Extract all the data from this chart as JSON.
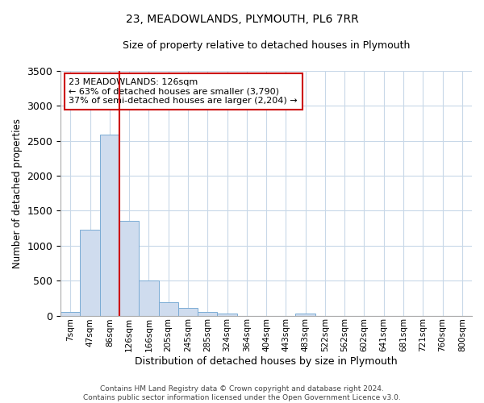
{
  "title": "23, MEADOWLANDS, PLYMOUTH, PL6 7RR",
  "subtitle": "Size of property relative to detached houses in Plymouth",
  "xlabel": "Distribution of detached houses by size in Plymouth",
  "ylabel": "Number of detached properties",
  "bar_labels": [
    "7sqm",
    "47sqm",
    "86sqm",
    "126sqm",
    "166sqm",
    "205sqm",
    "245sqm",
    "285sqm",
    "324sqm",
    "364sqm",
    "404sqm",
    "443sqm",
    "483sqm",
    "522sqm",
    "562sqm",
    "602sqm",
    "641sqm",
    "681sqm",
    "721sqm",
    "760sqm",
    "800sqm"
  ],
  "bar_values": [
    50,
    1230,
    2590,
    1350,
    500,
    195,
    115,
    50,
    25,
    0,
    0,
    0,
    25,
    0,
    0,
    0,
    0,
    0,
    0,
    0,
    0
  ],
  "bar_color": "#cfdcee",
  "bar_edge_color": "#7aabd4",
  "vline_color": "#cc0000",
  "annotation_text": "23 MEADOWLANDS: 126sqm\n← 63% of detached houses are smaller (3,790)\n37% of semi-detached houses are larger (2,204) →",
  "annotation_box_color": "#cc0000",
  "ylim": [
    0,
    3500
  ],
  "yticks": [
    0,
    500,
    1000,
    1500,
    2000,
    2500,
    3000,
    3500
  ],
  "footer_text": "Contains HM Land Registry data © Crown copyright and database right 2024.\nContains public sector information licensed under the Open Government Licence v3.0.",
  "background_color": "#ffffff",
  "grid_color": "#c8d8e8"
}
